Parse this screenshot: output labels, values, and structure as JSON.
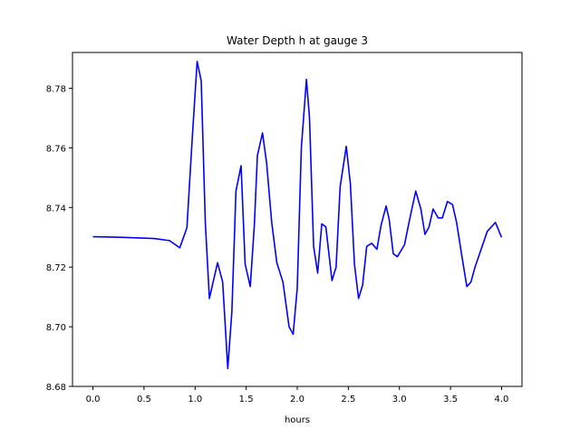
{
  "chart_data": {
    "type": "line",
    "title": "Water Depth h at gauge 3",
    "xlabel": "hours",
    "ylabel": "",
    "xlim": [
      -0.2,
      4.2
    ],
    "ylim": [
      8.68,
      8.792
    ],
    "xticks": [
      0.0,
      0.5,
      1.0,
      1.5,
      2.0,
      2.5,
      3.0,
      3.5,
      4.0
    ],
    "xtick_labels": [
      "0.0",
      "0.5",
      "1.0",
      "1.5",
      "2.0",
      "2.5",
      "3.0",
      "3.5",
      "4.0"
    ],
    "yticks": [
      8.68,
      8.7,
      8.72,
      8.74,
      8.76,
      8.78
    ],
    "ytick_labels": [
      "8.68",
      "8.70",
      "8.72",
      "8.74",
      "8.76",
      "8.78"
    ],
    "grid": false,
    "series": [
      {
        "color": "#0000ff",
        "x": [
          0.0,
          0.3,
          0.6,
          0.75,
          0.85,
          0.92,
          0.97,
          1.02,
          1.06,
          1.1,
          1.14,
          1.17,
          1.22,
          1.27,
          1.32,
          1.36,
          1.4,
          1.45,
          1.49,
          1.54,
          1.58,
          1.61,
          1.66,
          1.7,
          1.75,
          1.8,
          1.86,
          1.92,
          1.96,
          2.0,
          2.04,
          2.09,
          2.12,
          2.16,
          2.2,
          2.24,
          2.28,
          2.34,
          2.38,
          2.42,
          2.48,
          2.52,
          2.56,
          2.6,
          2.64,
          2.68,
          2.73,
          2.78,
          2.82,
          2.87,
          2.9,
          2.94,
          2.98,
          3.05,
          3.1,
          3.16,
          3.21,
          3.25,
          3.29,
          3.33,
          3.38,
          3.42,
          3.47,
          3.52,
          3.56,
          3.61,
          3.66,
          3.7,
          3.74,
          3.8,
          3.86,
          3.94,
          4.0
        ],
        "values": [
          8.7302,
          8.73,
          8.7296,
          8.7289,
          8.7265,
          8.7332,
          8.762,
          8.789,
          8.7825,
          8.735,
          8.7095,
          8.714,
          8.7215,
          8.715,
          8.686,
          8.705,
          8.7455,
          8.754,
          8.721,
          8.7135,
          8.734,
          8.7575,
          8.765,
          8.755,
          8.735,
          8.7215,
          8.715,
          8.7,
          8.6975,
          8.713,
          8.76,
          8.783,
          8.77,
          8.727,
          8.718,
          8.7345,
          8.7335,
          8.7155,
          8.72,
          8.747,
          8.7605,
          8.748,
          8.721,
          8.7095,
          8.714,
          8.727,
          8.728,
          8.726,
          8.734,
          8.7405,
          8.736,
          8.7245,
          8.7235,
          8.7275,
          8.736,
          8.7455,
          8.7395,
          8.731,
          8.7335,
          8.7395,
          8.7365,
          8.7365,
          8.742,
          8.741,
          8.735,
          8.724,
          8.7135,
          8.715,
          8.72,
          8.726,
          8.732,
          8.735,
          8.73
        ]
      }
    ]
  }
}
